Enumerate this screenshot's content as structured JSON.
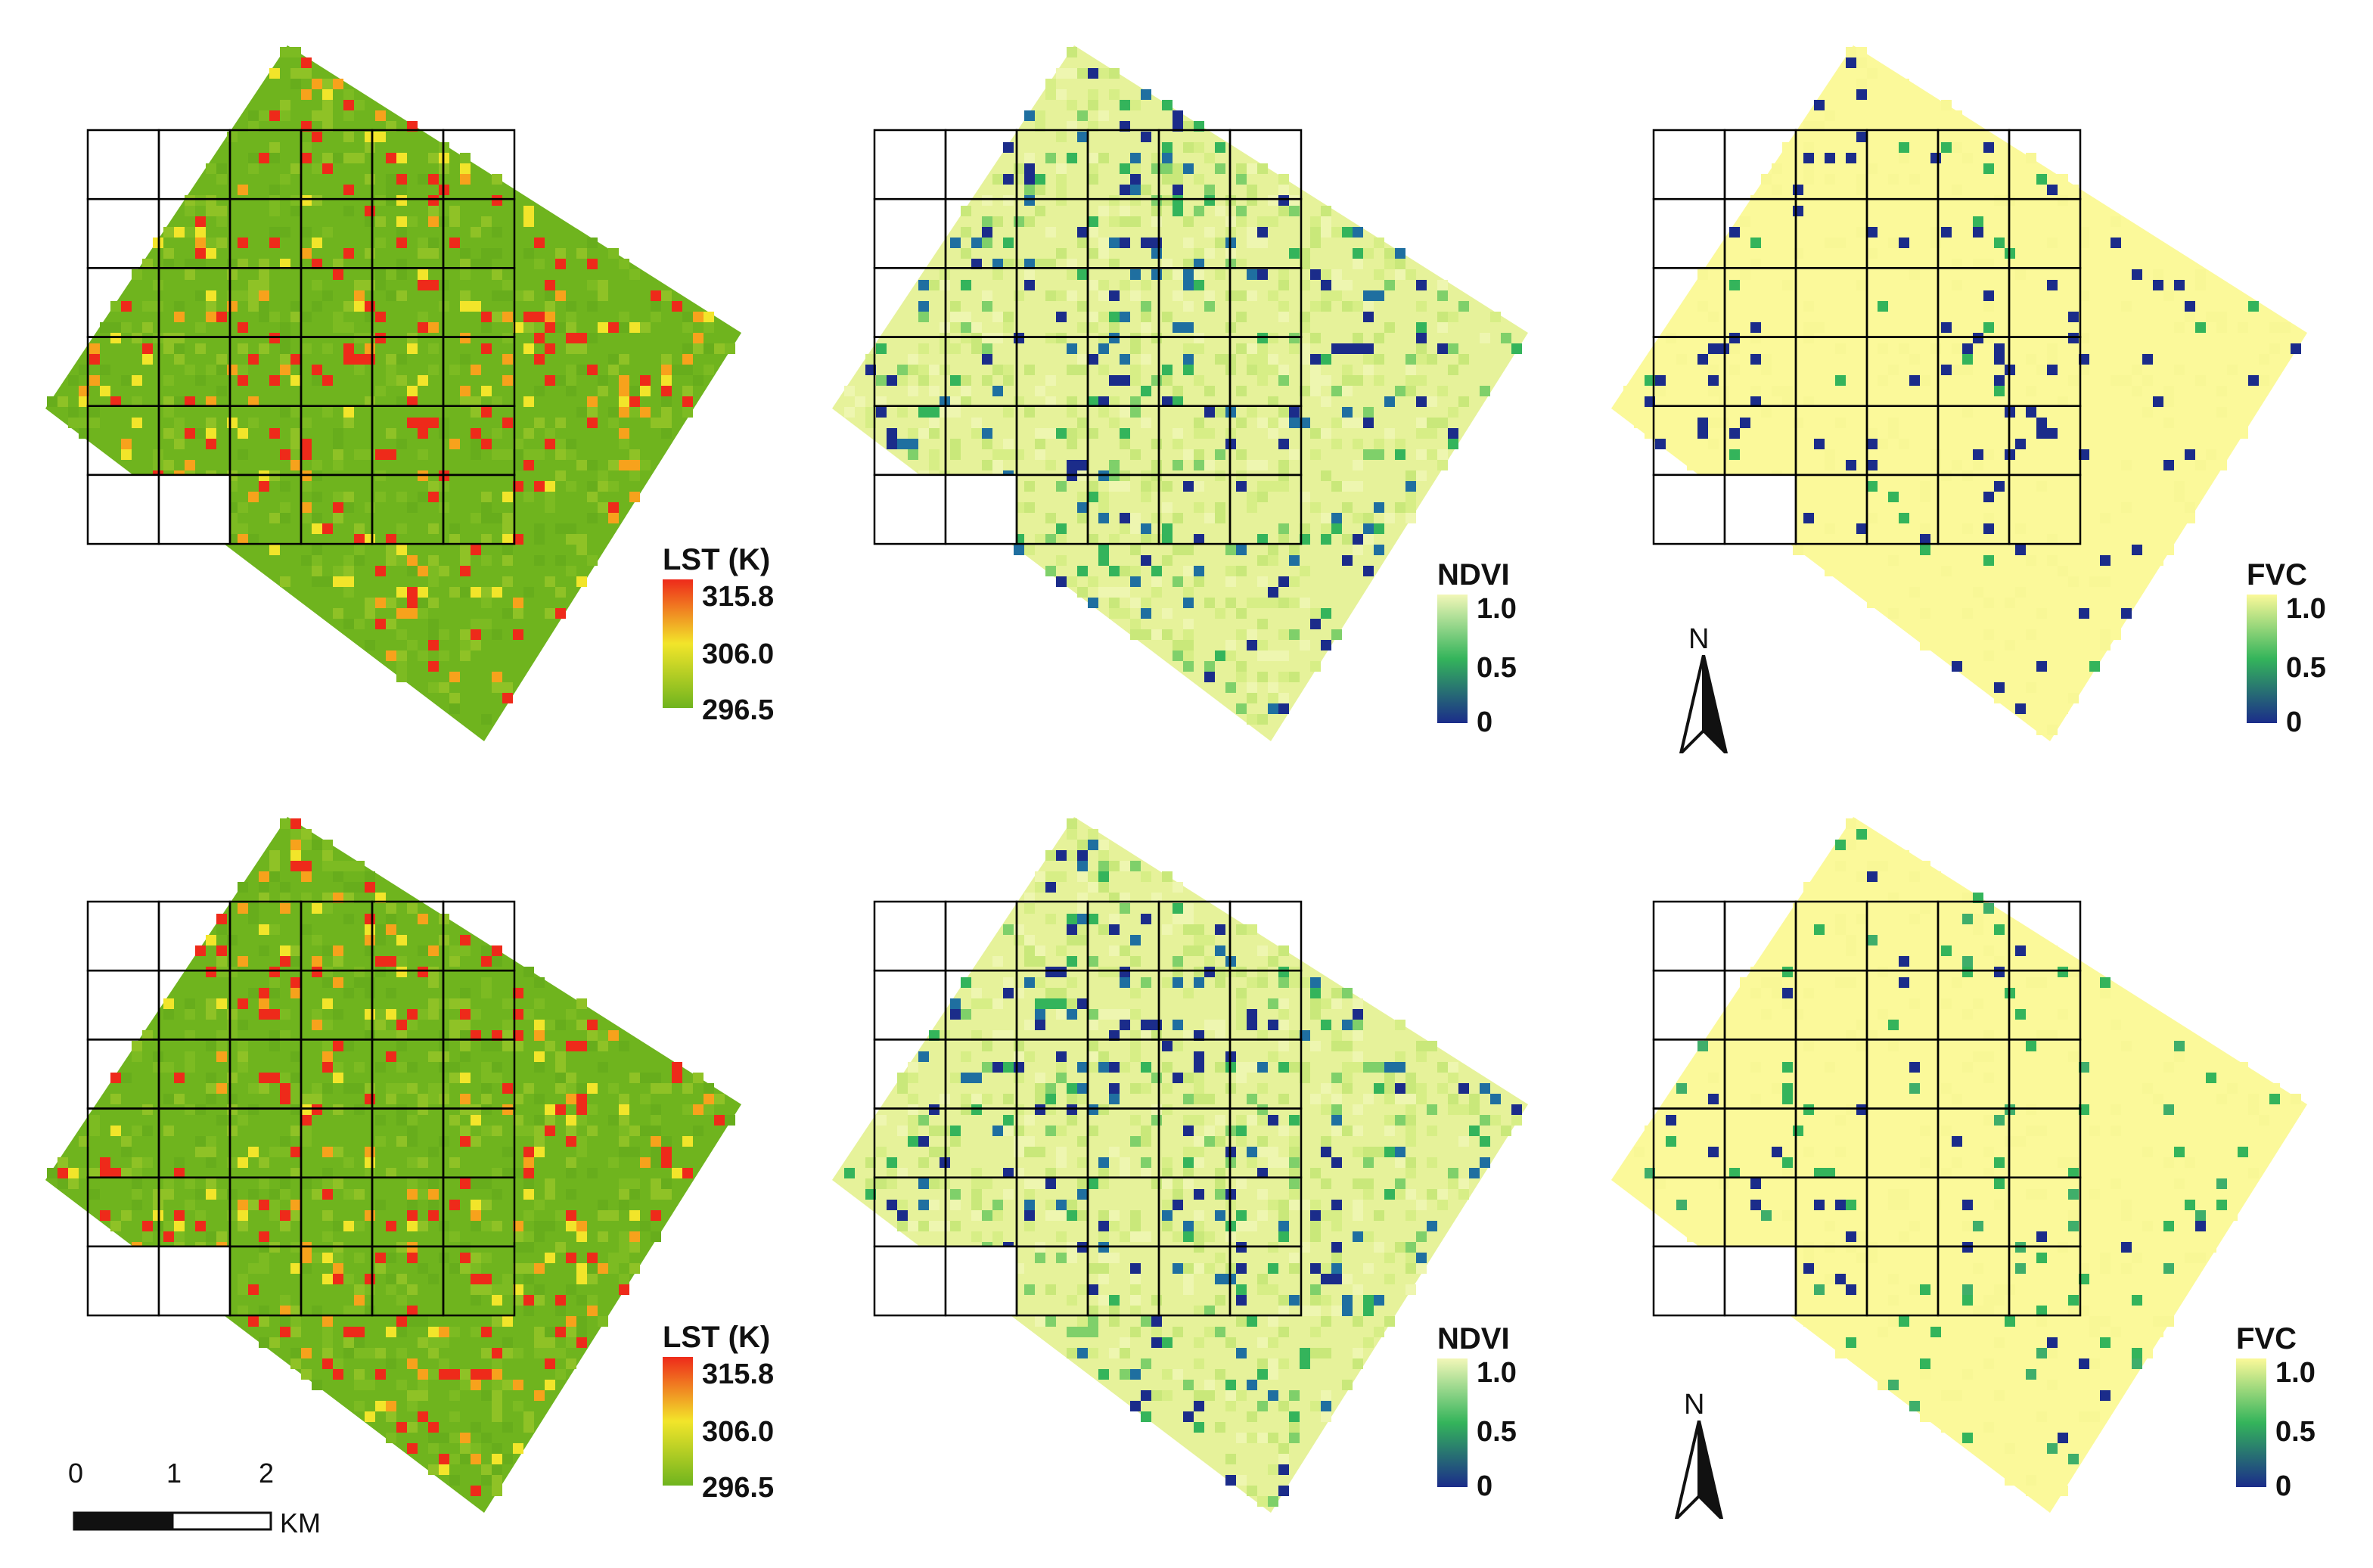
{
  "colors": {
    "lst_low": "#6fb41e",
    "lst_mid": "#f2e52a",
    "lst_high": "#ee2a1a",
    "ndvi_low": "#1b2c8a",
    "ndvi_mid": "#34b45b",
    "ndvi_high": "#f2f7b8",
    "fvc_low": "#1b2c8a",
    "fvc_mid": "#34b45b",
    "fvc_high": "#fbf99a"
  },
  "panels": [
    {
      "id": "lst_top",
      "variable": "LST",
      "row": 0,
      "legend": {
        "title": "LST (K)",
        "max": "315.8",
        "mid": "306.0",
        "min": "296.5"
      }
    },
    {
      "id": "ndvi_top",
      "variable": "NDVI",
      "row": 0,
      "legend": {
        "title": "NDVI",
        "max": "1.0",
        "mid": "0.5",
        "min": "0"
      }
    },
    {
      "id": "fvc_top",
      "variable": "FVC",
      "row": 0,
      "legend": {
        "title": "FVC",
        "max": "1.0",
        "mid": "0.5",
        "min": "0"
      }
    },
    {
      "id": "lst_bottom",
      "variable": "LST",
      "row": 1,
      "legend": {
        "title": "LST (K)",
        "max": "315.8",
        "mid": "306.0",
        "min": "296.5"
      }
    },
    {
      "id": "ndvi_bottom",
      "variable": "NDVI",
      "row": 1,
      "legend": {
        "title": "NDVI",
        "max": "1.0",
        "mid": "0.5",
        "min": "0"
      }
    },
    {
      "id": "fvc_bottom",
      "variable": "FVC",
      "row": 1,
      "legend": {
        "title": "FVC",
        "max": "1.0",
        "mid": "0.5",
        "min": "0"
      }
    }
  ],
  "north_arrow": {
    "label": "N"
  },
  "scale_bar": {
    "ticks": [
      "0",
      "1",
      "2"
    ],
    "unit": "KM"
  }
}
